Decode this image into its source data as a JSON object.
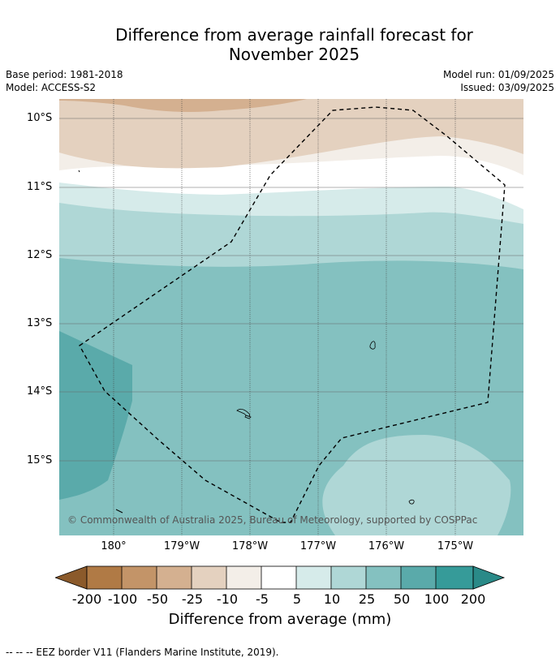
{
  "title_line1": "Difference from average rainfall forecast for",
  "title_line2": "November 2025",
  "base_period": "Base period: 1981-2018",
  "model": "Model: ACCESS-S2",
  "model_run": "Model run: 01/09/2025",
  "issued": "Issued: 03/09/2025",
  "lat_labels": [
    "10°S",
    "11°S",
    "12°S",
    "13°S",
    "14°S",
    "15°S"
  ],
  "lon_labels": [
    "180°",
    "179°W",
    "178°W",
    "177°W",
    "176°W",
    "175°W"
  ],
  "copyright": "© Commonwealth of Australia 2025, Bureau of Meteorology, supported by COSPPac",
  "colorbar": {
    "ticks": [
      "-200",
      "-100",
      "-50",
      "-25",
      "-10",
      "-5",
      "5",
      "10",
      "25",
      "50",
      "100",
      "200"
    ],
    "colors": [
      "#8b5a2b",
      "#b07a45",
      "#c39468",
      "#d4b090",
      "#e4d1bf",
      "#f3eee8",
      "#ffffff",
      "#d6ebea",
      "#afd7d6",
      "#84c1c0",
      "#5aaaaa",
      "#369b99",
      "#2a8a88"
    ],
    "label": "Difference from average (mm)"
  },
  "footnote": "--  --  -- EEZ border V11 (Flanders Marine Institute, 2019)."
}
